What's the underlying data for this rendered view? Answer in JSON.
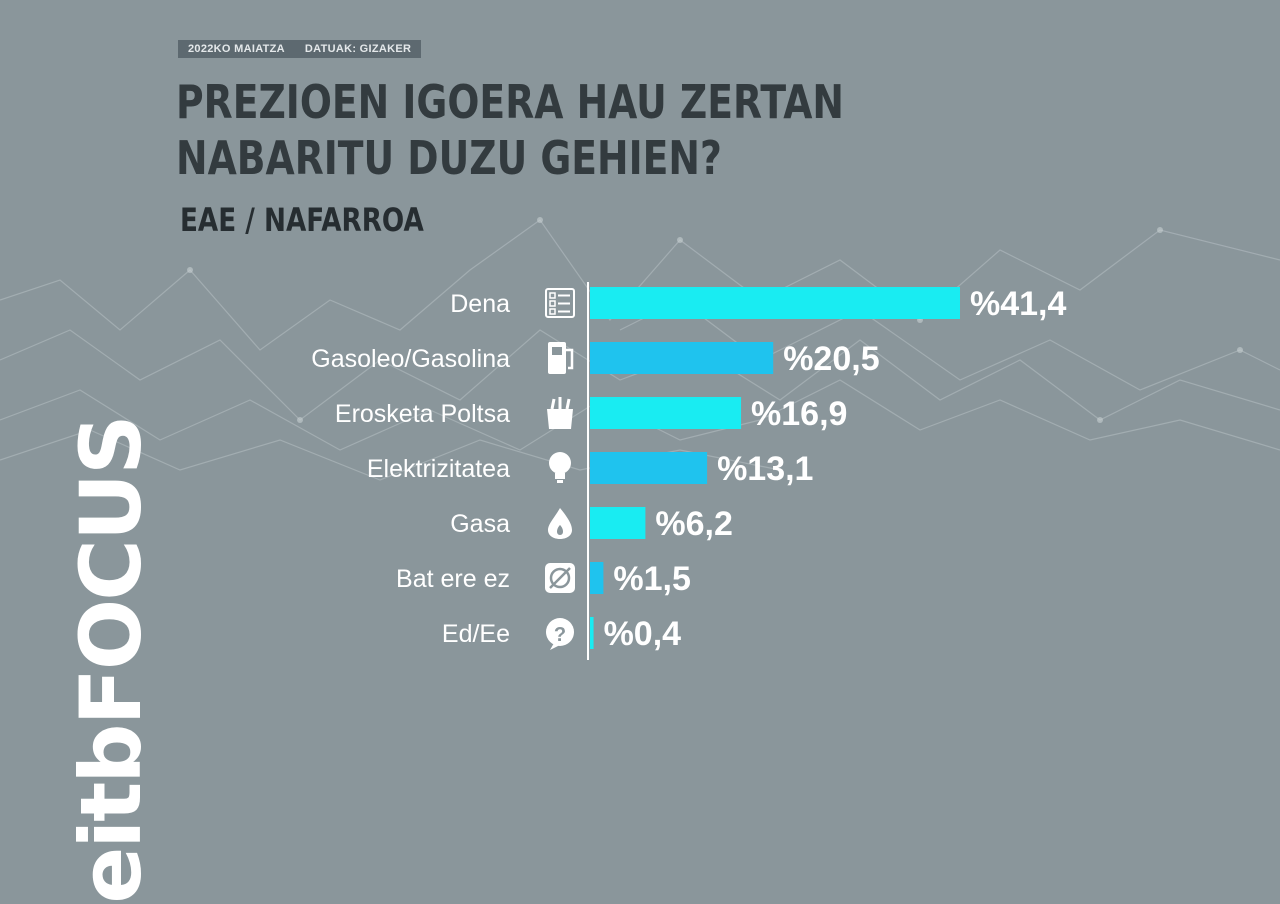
{
  "header": {
    "date": "2022KO MAIATZA",
    "source": "DATUAK: GIZAKER"
  },
  "logo": {
    "text": "eitbFOCUS"
  },
  "colors": {
    "background": "#8a969b",
    "bar_light": "#19ecf2",
    "bar_dark": "#1fc3ee",
    "title": "#333b3f"
  },
  "chart_data": {
    "type": "bar",
    "orientation": "horizontal",
    "title": "PREZIOEN IGOERA HAU ZERTAN NABARITU DUZU GEHIEN?",
    "subtitle": "EAE / NAFARROA",
    "categories": [
      "Dena",
      "Gasoleo/Gasolina",
      "Erosketa Poltsa",
      "Elektrizitatea",
      "Gasa",
      "Bat ere ez",
      "Ed/Ee"
    ],
    "values": [
      41.4,
      20.5,
      16.9,
      13.1,
      6.2,
      1.5,
      0.4
    ],
    "value_labels": [
      "%41,4",
      "%20,5",
      "%16,9",
      "%13,1",
      "%6,2",
      "%1,5",
      "%0,4"
    ],
    "icons": [
      "checklist-icon",
      "fuel-pump-icon",
      "shopping-bag-icon",
      "lightbulb-icon",
      "gas-flame-icon",
      "none-icon",
      "question-icon"
    ],
    "xlim": [
      0,
      41.4
    ],
    "grid": false,
    "legend": "none"
  }
}
